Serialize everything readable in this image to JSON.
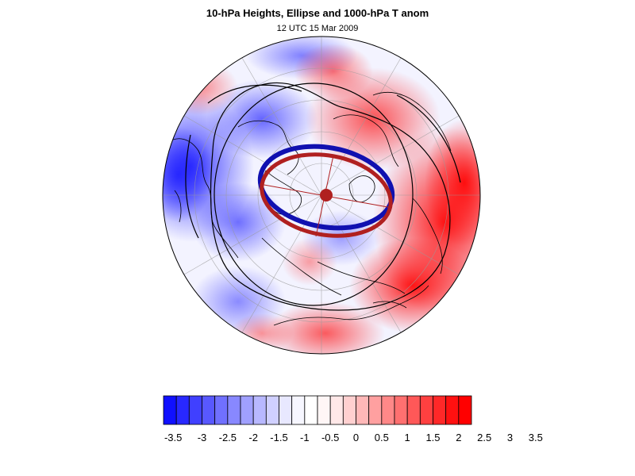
{
  "header": {
    "title": "10-hPa Heights, Ellipse and 1000-hPa T anom",
    "subtitle": "12 UTC 15 Mar 2009"
  },
  "map": {
    "projection": "polar stereographic (north)",
    "fields": {
      "shading": "1000-hPa temperature anomaly",
      "contours": "10-hPa heights",
      "ellipse": "fitted ellipse"
    },
    "colors": {
      "negative": "#0000ff",
      "positive": "#ff0000",
      "ellipse_outer": "#1010b0",
      "ellipse_inner": "#b02020",
      "centroid": "#b02020",
      "contour": "#000000",
      "coastline": "#000000",
      "grid": "#9a9a9a"
    }
  },
  "colorbar": {
    "labels": [
      "-3.5",
      "-3",
      "-2.5",
      "-2",
      "-1.5",
      "-1",
      "-0.5",
      "0",
      "0.5",
      "1",
      "1.5",
      "2",
      "2.5",
      "3",
      "3.5"
    ],
    "colors": [
      "#1010ff",
      "#2828ff",
      "#4040ff",
      "#5858ff",
      "#7070ff",
      "#8888ff",
      "#a0a0ff",
      "#b8b8ff",
      "#d0d0ff",
      "#e8e8ff",
      "#f6f6ff",
      "#ffffff",
      "#fff6f6",
      "#ffe8e8",
      "#ffd0d0",
      "#ffb8b8",
      "#ffa0a0",
      "#ff8888",
      "#ff7070",
      "#ff5858",
      "#ff4040",
      "#ff2828",
      "#ff1010",
      "#ff0000"
    ]
  }
}
